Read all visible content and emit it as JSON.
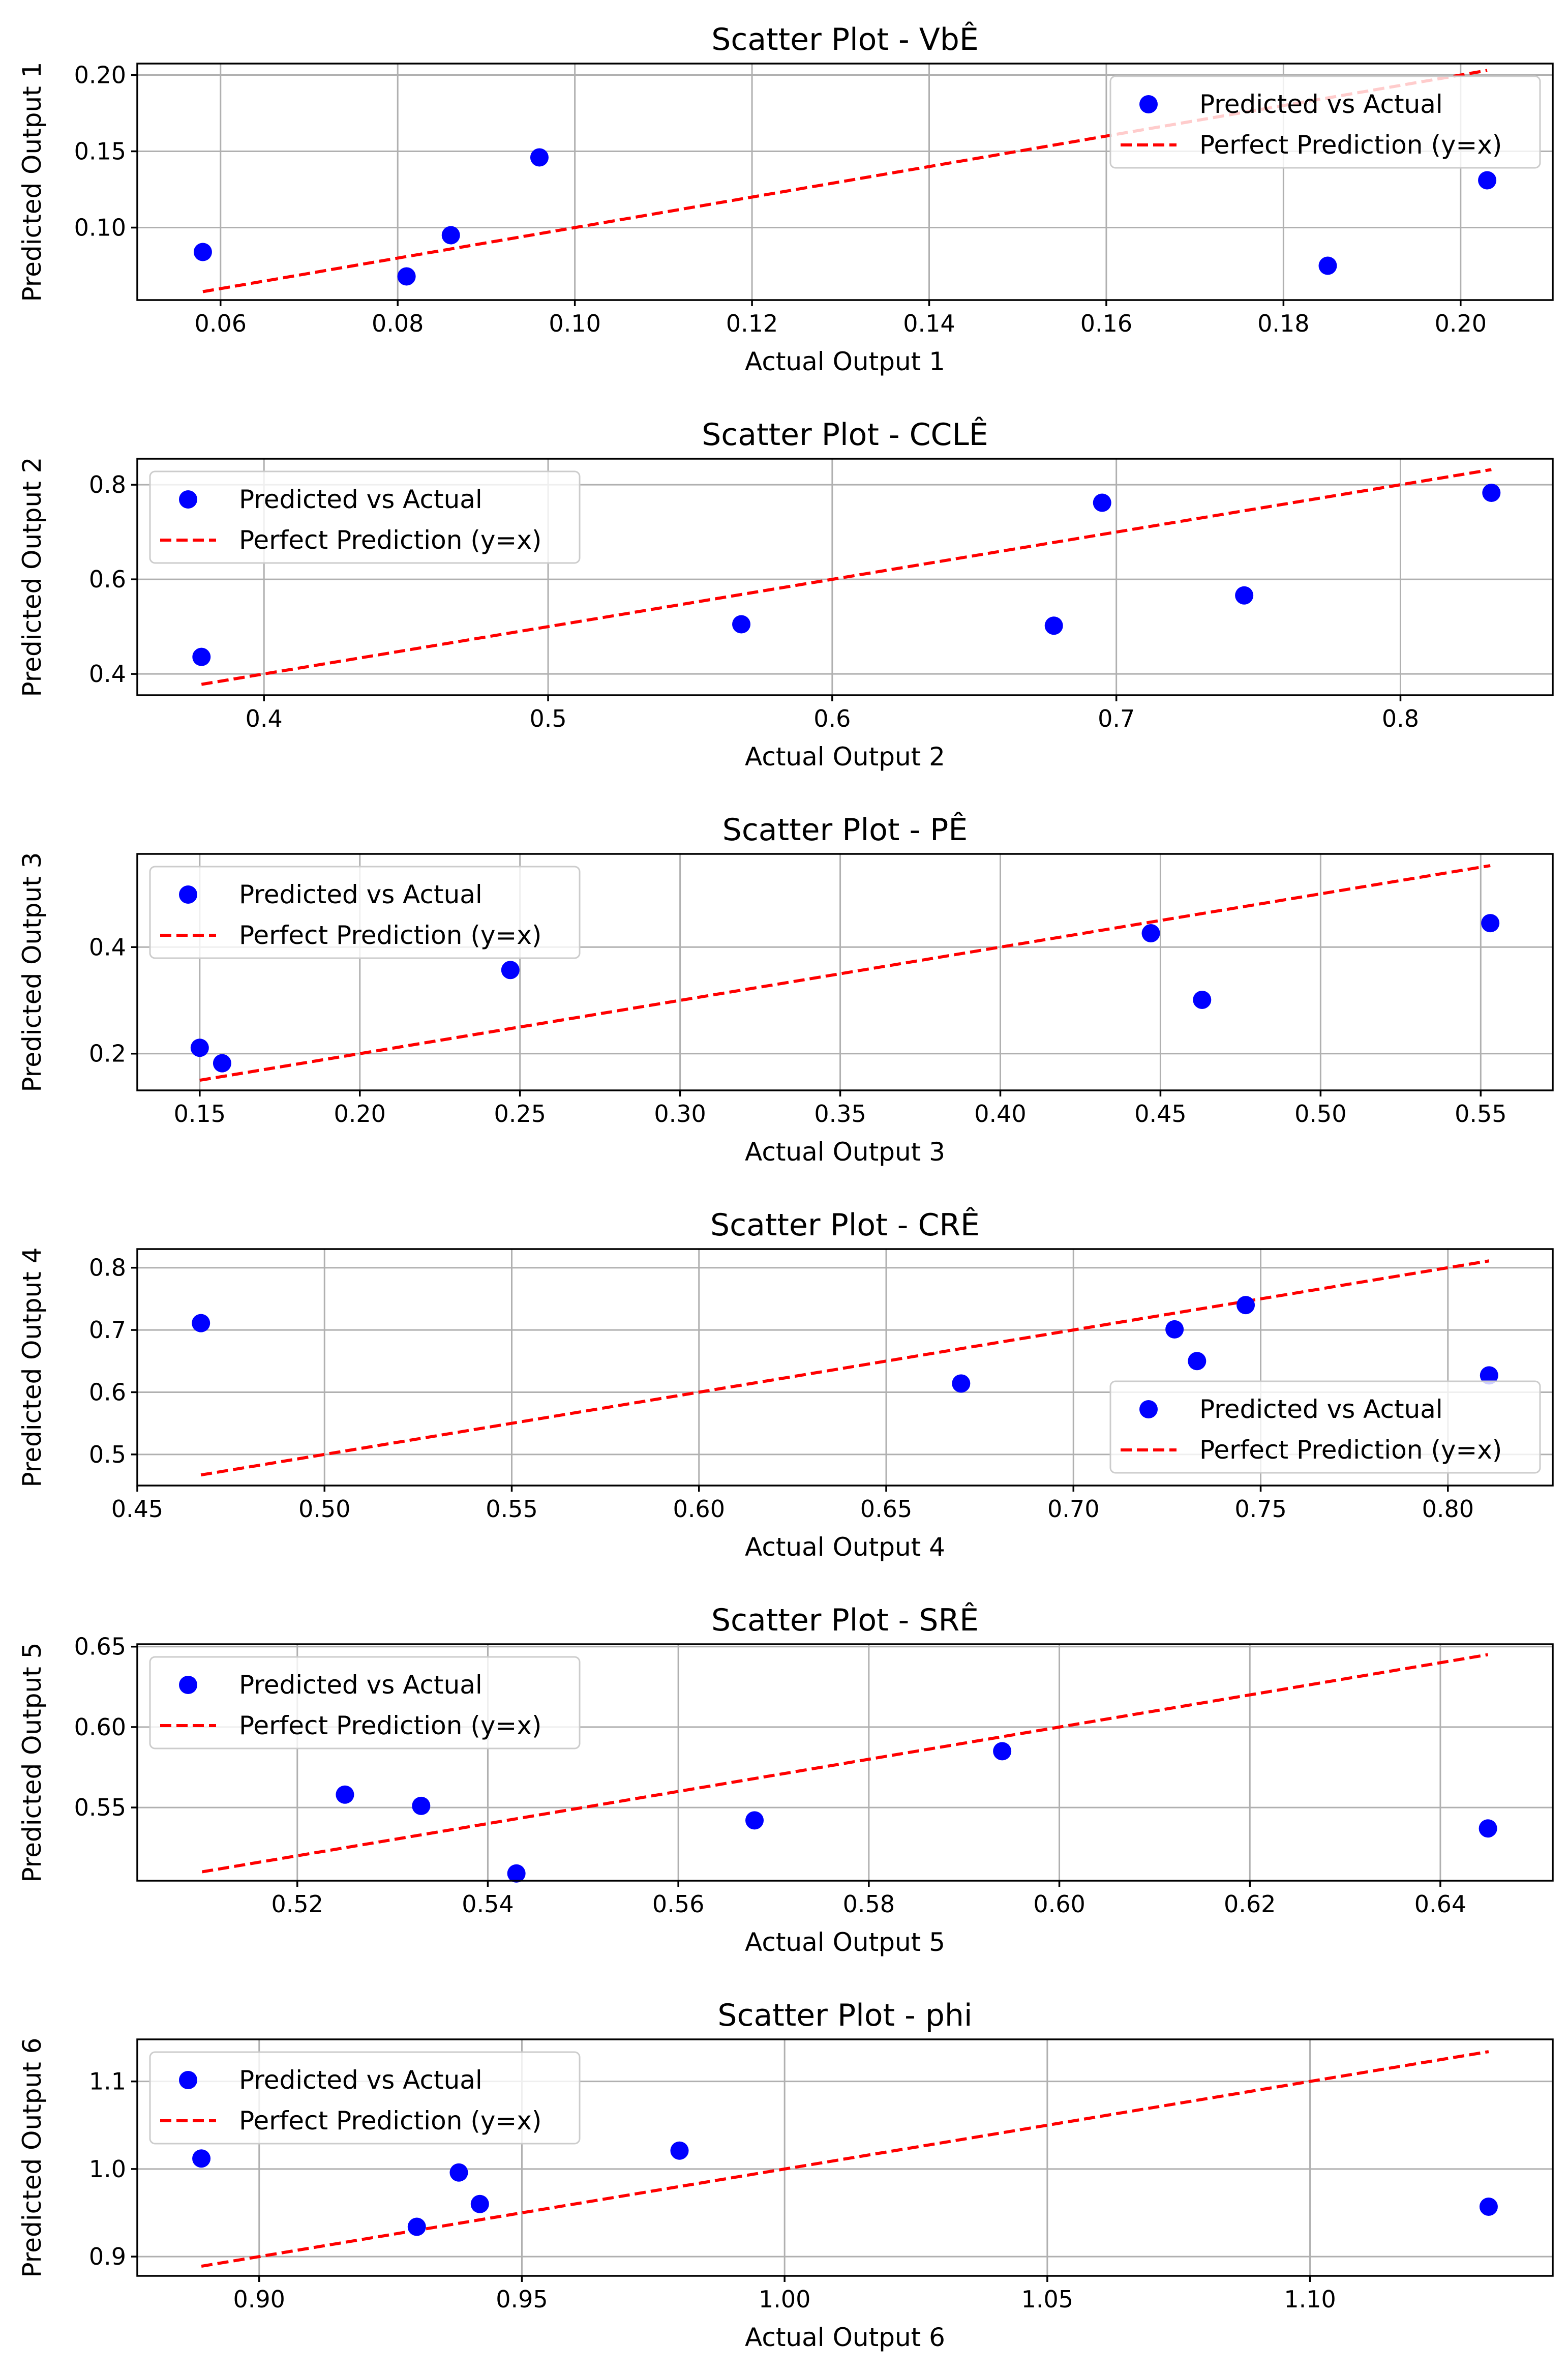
{
  "chart_data": [
    {
      "type": "scatter",
      "title": "Scatter Plot - VbÊ",
      "xlabel": "Actual Output 1",
      "ylabel": "Predicted Output 1",
      "xlim": [
        0.0506,
        0.2104
      ],
      "ylim": [
        0.0525,
        0.2075
      ],
      "xticks": [
        0.06,
        0.08,
        0.1,
        0.12,
        0.14,
        0.16,
        0.18,
        0.2
      ],
      "xtick_labels": [
        "0.06",
        "0.08",
        "0.10",
        "0.12",
        "0.14",
        "0.16",
        "0.18",
        "0.20"
      ],
      "yticks": [
        0.1,
        0.15,
        0.2
      ],
      "ytick_labels": [
        "0.10",
        "0.15",
        "0.20"
      ],
      "grid": true,
      "legend": "upper right",
      "series": [
        {
          "name": "Predicted vs Actual",
          "color": "#0000ff",
          "marker": "circle",
          "points": [
            [
              0.058,
              0.084
            ],
            [
              0.081,
              0.068
            ],
            [
              0.086,
              0.095
            ],
            [
              0.096,
              0.146
            ],
            [
              0.185,
              0.075
            ],
            [
              0.203,
              0.131
            ]
          ]
        },
        {
          "name": "Perfect Prediction (y=x)",
          "color": "#ff0000",
          "style": "dashed",
          "points": [
            [
              0.058,
              0.058
            ],
            [
              0.203,
              0.203
            ]
          ]
        }
      ]
    },
    {
      "type": "scatter",
      "title": "Scatter Plot - CCLÊ",
      "xlabel": "Actual Output 2",
      "ylabel": "Predicted Output 2",
      "xlim": [
        0.3554,
        0.8536
      ],
      "ylim": [
        0.355,
        0.855
      ],
      "xticks": [
        0.4,
        0.5,
        0.6,
        0.7,
        0.8
      ],
      "xtick_labels": [
        "0.4",
        "0.5",
        "0.6",
        "0.7",
        "0.8"
      ],
      "yticks": [
        0.4,
        0.6,
        0.8
      ],
      "ytick_labels": [
        "0.4",
        "0.6",
        "0.8"
      ],
      "grid": true,
      "legend": "upper left",
      "series": [
        {
          "name": "Predicted vs Actual",
          "color": "#0000ff",
          "marker": "circle",
          "points": [
            [
              0.378,
              0.436
            ],
            [
              0.568,
              0.505
            ],
            [
              0.678,
              0.502
            ],
            [
              0.695,
              0.762
            ],
            [
              0.745,
              0.566
            ],
            [
              0.832,
              0.783
            ]
          ]
        },
        {
          "name": "Perfect Prediction (y=x)",
          "color": "#ff0000",
          "style": "dashed",
          "points": [
            [
              0.378,
              0.378
            ],
            [
              0.832,
              0.832
            ]
          ]
        }
      ]
    },
    {
      "type": "scatter",
      "title": "Scatter Plot - PÊ",
      "xlabel": "Actual Output 3",
      "ylabel": "Predicted Output 3",
      "xlim": [
        0.1305,
        0.5725
      ],
      "ylim": [
        0.131,
        0.575
      ],
      "xticks": [
        0.15,
        0.2,
        0.25,
        0.3,
        0.35,
        0.4,
        0.45,
        0.5,
        0.55
      ],
      "xtick_labels": [
        "0.15",
        "0.20",
        "0.25",
        "0.30",
        "0.35",
        "0.40",
        "0.45",
        "0.50",
        "0.55"
      ],
      "yticks": [
        0.2,
        0.4
      ],
      "ytick_labels": [
        "0.2",
        "0.4"
      ],
      "grid": true,
      "legend": "upper left",
      "series": [
        {
          "name": "Predicted vs Actual",
          "color": "#0000ff",
          "marker": "circle",
          "points": [
            [
              0.15,
              0.211
            ],
            [
              0.157,
              0.182
            ],
            [
              0.247,
              0.357
            ],
            [
              0.447,
              0.426
            ],
            [
              0.463,
              0.301
            ],
            [
              0.553,
              0.445
            ]
          ]
        },
        {
          "name": "Perfect Prediction (y=x)",
          "color": "#ff0000",
          "style": "dashed",
          "points": [
            [
              0.15,
              0.15
            ],
            [
              0.553,
              0.553
            ]
          ]
        }
      ]
    },
    {
      "type": "scatter",
      "title": "Scatter Plot - CRÊ",
      "xlabel": "Actual Output 4",
      "ylabel": "Predicted Output 4",
      "xlim": [
        0.45,
        0.828
      ],
      "ylim": [
        0.45,
        0.83
      ],
      "xticks": [
        0.45,
        0.5,
        0.55,
        0.6,
        0.65,
        0.7,
        0.75,
        0.8
      ],
      "xtick_labels": [
        "0.45",
        "0.50",
        "0.55",
        "0.60",
        "0.65",
        "0.70",
        "0.75",
        "0.80"
      ],
      "yticks": [
        0.5,
        0.6,
        0.7,
        0.8
      ],
      "ytick_labels": [
        "0.5",
        "0.6",
        "0.7",
        "0.8"
      ],
      "grid": true,
      "legend": "lower right",
      "series": [
        {
          "name": "Predicted vs Actual",
          "color": "#0000ff",
          "marker": "circle",
          "points": [
            [
              0.467,
              0.711
            ],
            [
              0.67,
              0.614
            ],
            [
              0.727,
              0.701
            ],
            [
              0.733,
              0.65
            ],
            [
              0.746,
              0.74
            ],
            [
              0.811,
              0.627
            ]
          ]
        },
        {
          "name": "Perfect Prediction (y=x)",
          "color": "#ff0000",
          "style": "dashed",
          "points": [
            [
              0.467,
              0.467
            ],
            [
              0.811,
              0.811
            ]
          ]
        }
      ]
    },
    {
      "type": "scatter",
      "title": "Scatter Plot - SRÊ",
      "xlabel": "Actual Output 5",
      "ylabel": "Predicted Output 5",
      "xlim": [
        0.5032,
        0.6518
      ],
      "ylim": [
        0.5045,
        0.6515
      ],
      "xticks": [
        0.52,
        0.54,
        0.56,
        0.58,
        0.6,
        0.62,
        0.64
      ],
      "xtick_labels": [
        "0.52",
        "0.54",
        "0.56",
        "0.58",
        "0.60",
        "0.62",
        "0.64"
      ],
      "yticks": [
        0.55,
        0.6,
        0.65
      ],
      "ytick_labels": [
        "0.55",
        "0.60",
        "0.65"
      ],
      "grid": true,
      "legend": "upper left",
      "series": [
        {
          "name": "Predicted vs Actual",
          "color": "#0000ff",
          "marker": "circle",
          "points": [
            [
              0.525,
              0.558
            ],
            [
              0.533,
              0.551
            ],
            [
              0.543,
              0.509
            ],
            [
              0.568,
              0.542
            ],
            [
              0.594,
              0.585
            ],
            [
              0.645,
              0.537
            ]
          ]
        },
        {
          "name": "Perfect Prediction (y=x)",
          "color": "#ff0000",
          "style": "dashed",
          "points": [
            [
              0.51,
              0.51
            ],
            [
              0.645,
              0.645
            ]
          ]
        }
      ]
    },
    {
      "type": "scatter",
      "title": "Scatter Plot - phi",
      "xlabel": "Actual Output 6",
      "ylabel": "Predicted Output 6",
      "xlim": [
        0.8768,
        1.1462
      ],
      "ylim": [
        0.878,
        1.148
      ],
      "xticks": [
        0.9,
        0.95,
        1.0,
        1.05,
        1.1
      ],
      "xtick_labels": [
        "0.90",
        "0.95",
        "1.00",
        "1.05",
        "1.10"
      ],
      "yticks": [
        0.9,
        1.0,
        1.1
      ],
      "ytick_labels": [
        "0.9",
        "1.0",
        "1.1"
      ],
      "grid": true,
      "legend": "upper left",
      "series": [
        {
          "name": "Predicted vs Actual",
          "color": "#0000ff",
          "marker": "circle",
          "points": [
            [
              0.889,
              1.012
            ],
            [
              0.93,
              0.934
            ],
            [
              0.938,
              0.996
            ],
            [
              0.942,
              0.96
            ],
            [
              0.98,
              1.021
            ],
            [
              1.134,
              0.957
            ]
          ]
        },
        {
          "name": "Perfect Prediction (y=x)",
          "color": "#ff0000",
          "style": "dashed",
          "points": [
            [
              0.889,
              0.889
            ],
            [
              1.134,
              1.134
            ]
          ]
        }
      ]
    }
  ]
}
